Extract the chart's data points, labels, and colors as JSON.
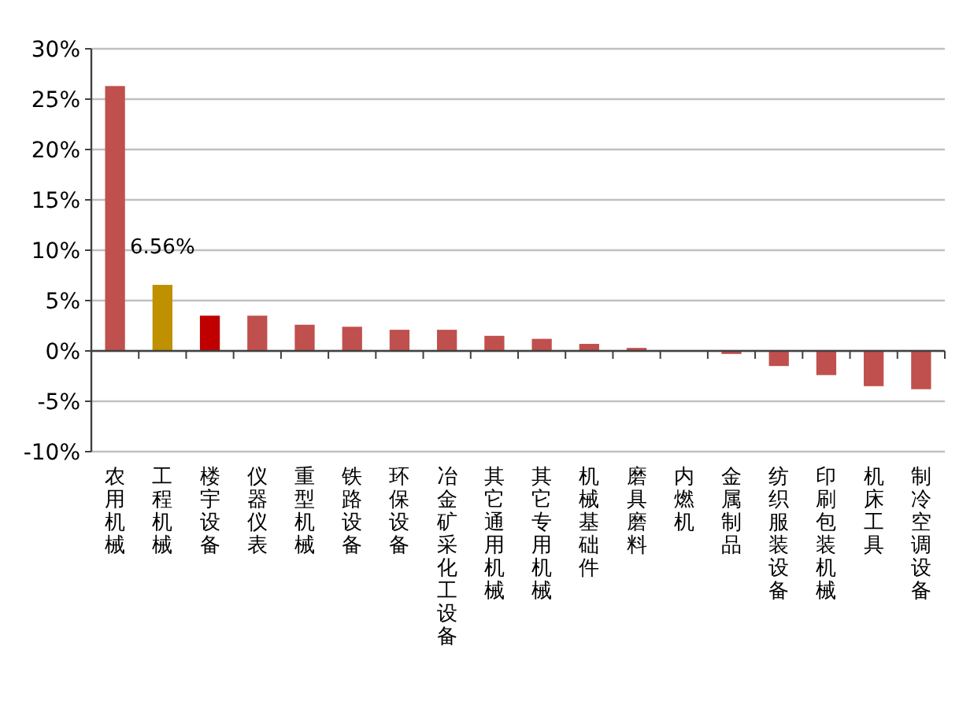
{
  "chart_data": {
    "type": "bar",
    "categories": [
      "农用机械",
      "工程机械",
      "楼宇设备",
      "仪器仪表",
      "重型机械",
      "铁路设备",
      "环保设备",
      "冶金矿采化工设备",
      "其它通用机械",
      "其它专用机械",
      "机械基础件",
      "磨具磨料",
      "内燃机",
      "金属制品",
      "纺织服装设备",
      "印刷包装机械",
      "机床工具",
      "制冷空调设备"
    ],
    "values": [
      26.3,
      6.56,
      3.5,
      3.5,
      2.6,
      2.4,
      2.1,
      2.1,
      1.5,
      1.2,
      0.7,
      0.3,
      0,
      -0.3,
      -1.5,
      -2.4,
      -3.5,
      -3.8
    ],
    "colors": [
      "#c0504d",
      "#bf9000",
      "#c00000",
      "#c0504d",
      "#c0504d",
      "#c0504d",
      "#c0504d",
      "#c0504d",
      "#c0504d",
      "#c0504d",
      "#c0504d",
      "#c0504d",
      "#c0504d",
      "#c0504d",
      "#c0504d",
      "#c0504d",
      "#c0504d",
      "#c0504d"
    ],
    "value_labels": [
      null,
      "6.56%",
      null,
      null,
      null,
      null,
      null,
      null,
      null,
      null,
      null,
      null,
      null,
      null,
      null,
      null,
      null,
      null
    ],
    "ylim": [
      -10,
      30
    ],
    "yticks": [
      {
        "value": -10,
        "label": "-10%"
      },
      {
        "value": -5,
        "label": "-5%"
      },
      {
        "value": 0,
        "label": "0%"
      },
      {
        "value": 5,
        "label": "5%"
      },
      {
        "value": 10,
        "label": "10%"
      },
      {
        "value": 15,
        "label": "15%"
      },
      {
        "value": 20,
        "label": "20%"
      },
      {
        "value": 25,
        "label": "25%"
      },
      {
        "value": 30,
        "label": "30%"
      }
    ],
    "grid": "y"
  }
}
